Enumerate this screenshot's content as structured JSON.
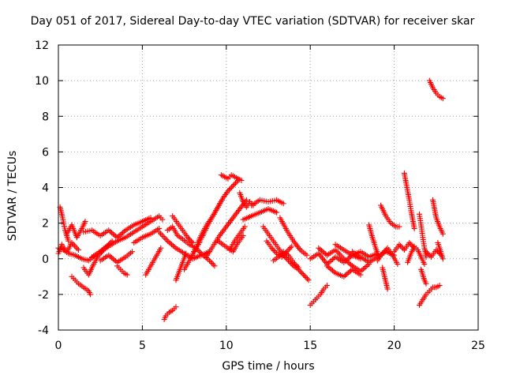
{
  "chart_data": {
    "type": "scatter",
    "title": "Day 051 of 2017, Sidereal Day-to-day VTEC variation (SDTVAR) for receiver skar",
    "xlabel": "GPS time / hours",
    "ylabel": "SDTVAR / TECUs",
    "xlim": [
      0,
      25
    ],
    "ylim": [
      -4,
      12
    ],
    "xticks": [
      "0",
      "5",
      "10",
      "15",
      "20",
      "25"
    ],
    "yticks": [
      "-4",
      "-2",
      "0",
      "2",
      "4",
      "6",
      "8",
      "10",
      "12"
    ],
    "grid": true,
    "marker": "plus",
    "color": "#ff0000",
    "tracks": [
      {
        "x": [
          0.0,
          0.3,
          0.6,
          1.0,
          1.4,
          1.8,
          2.2,
          2.6,
          3.0
        ],
        "y": [
          0.6,
          0.5,
          0.3,
          0.2,
          0.0,
          -0.1,
          0.2,
          0.5,
          0.8
        ]
      },
      {
        "x": [
          0.0,
          0.2,
          0.5,
          0.8,
          1.2
        ],
        "y": [
          0.3,
          0.8,
          0.4,
          0.9,
          0.5
        ]
      },
      {
        "x": [
          0.1,
          0.25,
          0.4,
          0.6
        ],
        "y": [
          2.9,
          2.3,
          1.6,
          1.0
        ]
      },
      {
        "x": [
          0.5,
          0.8,
          1.1,
          1.4,
          1.6
        ],
        "y": [
          1.4,
          1.9,
          1.2,
          1.7,
          2.1
        ]
      },
      {
        "x": [
          0.8,
          1.0,
          1.2,
          1.5,
          1.8,
          1.9
        ],
        "y": [
          -1.0,
          -1.2,
          -1.4,
          -1.6,
          -1.8,
          -2.0
        ]
      },
      {
        "x": [
          1.5,
          1.8,
          2.1,
          2.4,
          2.8,
          3.2
        ],
        "y": [
          -0.5,
          -0.9,
          -0.3,
          0.2,
          0.6,
          1.0
        ]
      },
      {
        "x": [
          1.5,
          2.0,
          2.5,
          3.0,
          3.5,
          4.0,
          4.5,
          5.0,
          5.5
        ],
        "y": [
          1.5,
          1.6,
          1.3,
          1.6,
          1.2,
          1.6,
          1.9,
          2.1,
          2.3
        ]
      },
      {
        "x": [
          2.0,
          2.5,
          3.0,
          3.5,
          4.0,
          4.5,
          5.0,
          5.5,
          6.0,
          6.2
        ],
        "y": [
          0.1,
          0.4,
          0.7,
          1.0,
          1.2,
          1.5,
          1.8,
          2.1,
          2.4,
          2.2
        ]
      },
      {
        "x": [
          2.5,
          3.0,
          3.5,
          4.0,
          4.4
        ],
        "y": [
          -0.1,
          0.2,
          -0.2,
          0.1,
          0.4
        ]
      },
      {
        "x": [
          3.5,
          3.7,
          3.9,
          4.1
        ],
        "y": [
          -0.4,
          -0.6,
          -0.8,
          -0.9
        ]
      },
      {
        "x": [
          4.5,
          5.0,
          5.5,
          6.0
        ],
        "y": [
          0.9,
          1.2,
          1.4,
          1.7
        ]
      },
      {
        "x": [
          5.2,
          5.5,
          5.8,
          6.1
        ],
        "y": [
          -0.9,
          -0.4,
          0.1,
          0.6
        ]
      },
      {
        "x": [
          6.0,
          6.5,
          7.0,
          7.5,
          8.0,
          8.5,
          9.0
        ],
        "y": [
          1.5,
          1.0,
          0.6,
          0.3,
          0.0,
          0.2,
          0.4
        ]
      },
      {
        "x": [
          6.3,
          6.4,
          6.6,
          6.8,
          7.0
        ],
        "y": [
          -3.4,
          -3.2,
          -3.0,
          -2.9,
          -2.7
        ]
      },
      {
        "x": [
          6.5,
          6.8,
          7.1,
          7.4,
          7.8,
          8.2,
          8.6,
          9.0,
          9.3
        ],
        "y": [
          1.6,
          1.8,
          1.3,
          1.1,
          0.8,
          0.6,
          0.2,
          -0.1,
          -0.4
        ]
      },
      {
        "x": [
          6.8,
          7.1,
          7.4,
          7.7,
          8.0
        ],
        "y": [
          2.4,
          2.0,
          1.6,
          1.2,
          0.9
        ]
      },
      {
        "x": [
          7.0,
          7.2,
          7.4,
          7.6
        ],
        "y": [
          -1.2,
          -0.7,
          -0.2,
          0.3
        ]
      },
      {
        "x": [
          7.5,
          7.8,
          8.1,
          8.4
        ],
        "y": [
          -0.6,
          -0.1,
          0.4,
          0.9
        ]
      },
      {
        "x": [
          8.0,
          8.3,
          8.6,
          8.9,
          9.2,
          9.5,
          9.8,
          10.1
        ],
        "y": [
          0.3,
          0.8,
          1.3,
          1.9,
          2.4,
          2.9,
          3.4,
          3.8
        ]
      },
      {
        "x": [
          8.3,
          8.6,
          8.9,
          9.2,
          9.5,
          9.8,
          10.1,
          10.4,
          10.7
        ],
        "y": [
          0.9,
          1.5,
          2.0,
          2.4,
          2.9,
          3.4,
          3.8,
          4.1,
          4.4
        ]
      },
      {
        "x": [
          8.8,
          9.2,
          9.6,
          10.0,
          10.4,
          10.8,
          11.2
        ],
        "y": [
          0.1,
          0.7,
          1.3,
          1.8,
          2.3,
          2.8,
          3.3
        ]
      },
      {
        "x": [
          9.7,
          9.9,
          10.1,
          10.3,
          10.5,
          10.7,
          10.9
        ],
        "y": [
          4.7,
          4.6,
          4.5,
          4.7,
          4.6,
          4.5,
          4.4
        ]
      },
      {
        "x": [
          9.5,
          9.8,
          10.1,
          10.4,
          10.7,
          11.0
        ],
        "y": [
          1.0,
          0.8,
          0.6,
          0.4,
          0.9,
          1.3
        ]
      },
      {
        "x": [
          10.2,
          10.5,
          10.8,
          11.1
        ],
        "y": [
          0.5,
          1.0,
          1.4,
          1.8
        ]
      },
      {
        "x": [
          10.8,
          11.0,
          11.2,
          11.4,
          11.6
        ],
        "y": [
          3.7,
          3.2,
          2.9,
          3.2,
          3.0
        ]
      },
      {
        "x": [
          11.0,
          11.5,
          12.0,
          12.5,
          13.0
        ],
        "y": [
          2.2,
          2.4,
          2.6,
          2.8,
          2.6
        ]
      },
      {
        "x": [
          11.5,
          12.0,
          12.5,
          13.0,
          13.4
        ],
        "y": [
          3.0,
          3.3,
          3.2,
          3.3,
          3.1
        ]
      },
      {
        "x": [
          12.2,
          12.5,
          12.8,
          13.1,
          13.4,
          13.7,
          14.0,
          14.3,
          14.6,
          14.9
        ],
        "y": [
          1.8,
          1.4,
          1.0,
          0.6,
          0.2,
          -0.1,
          -0.4,
          -0.6,
          -0.9,
          -1.2
        ]
      },
      {
        "x": [
          12.4,
          12.7,
          13.0,
          13.3,
          13.6,
          13.9
        ],
        "y": [
          1.0,
          0.6,
          0.3,
          0.1,
          0.4,
          0.7
        ]
      },
      {
        "x": [
          12.8,
          13.1,
          13.4,
          13.7,
          14.0,
          14.3
        ],
        "y": [
          -0.1,
          0.1,
          0.4,
          0.2,
          -0.2,
          -0.5
        ]
      },
      {
        "x": [
          13.2,
          13.6,
          14.0,
          14.4,
          14.8
        ],
        "y": [
          2.3,
          1.6,
          1.0,
          0.5,
          0.2
        ]
      },
      {
        "x": [
          15.0,
          15.2,
          15.4,
          15.6,
          15.8,
          16.0
        ],
        "y": [
          -2.6,
          -2.4,
          -2.2,
          -2.0,
          -1.7,
          -1.5
        ]
      },
      {
        "x": [
          15.0,
          15.5,
          16.0,
          16.5,
          17.0,
          17.5,
          18.0
        ],
        "y": [
          0.0,
          0.3,
          -0.3,
          0.1,
          -0.2,
          0.2,
          0.0
        ]
      },
      {
        "x": [
          15.5,
          16.0,
          16.5,
          17.0,
          17.5,
          18.0,
          18.5
        ],
        "y": [
          0.6,
          0.2,
          0.5,
          0.0,
          -0.4,
          -0.7,
          -0.3
        ]
      },
      {
        "x": [
          16.0,
          16.5,
          17.0,
          17.5,
          18.0
        ],
        "y": [
          -0.4,
          -0.8,
          -1.0,
          -0.6,
          -0.9
        ]
      },
      {
        "x": [
          16.5,
          17.0,
          17.5,
          18.0,
          18.5,
          19.0
        ],
        "y": [
          0.8,
          0.5,
          0.2,
          0.4,
          0.1,
          0.3
        ]
      },
      {
        "x": [
          17.5,
          18.0,
          18.5,
          19.0,
          19.5,
          20.0
        ],
        "y": [
          0.4,
          0.1,
          -0.2,
          0.1,
          0.4,
          0.2
        ]
      },
      {
        "x": [
          18.5,
          18.7,
          18.9,
          19.1
        ],
        "y": [
          1.9,
          1.2,
          0.6,
          0.1
        ]
      },
      {
        "x": [
          19.0,
          19.3,
          19.6,
          19.9,
          20.2
        ],
        "y": [
          -0.1,
          0.3,
          0.6,
          0.2,
          -0.3
        ]
      },
      {
        "x": [
          19.3,
          19.4,
          19.5,
          19.6
        ],
        "y": [
          -0.5,
          -0.9,
          -1.3,
          -1.7
        ]
      },
      {
        "x": [
          19.2,
          19.5,
          19.8,
          20.1,
          20.3
        ],
        "y": [
          3.0,
          2.4,
          2.0,
          1.8,
          1.8
        ]
      },
      {
        "x": [
          20.0,
          20.3,
          20.6,
          20.9,
          21.2
        ],
        "y": [
          0.4,
          0.8,
          0.5,
          0.9,
          0.6
        ]
      },
      {
        "x": [
          20.6,
          20.7,
          20.8,
          20.9,
          21.0,
          21.1,
          21.2
        ],
        "y": [
          4.8,
          4.3,
          3.8,
          3.3,
          2.7,
          2.2,
          1.7
        ]
      },
      {
        "x": [
          20.8,
          21.0,
          21.2,
          21.4,
          21.6,
          21.8
        ],
        "y": [
          -0.2,
          0.3,
          0.7,
          0.5,
          0.1,
          -0.3
        ]
      },
      {
        "x": [
          21.5,
          21.6,
          21.7,
          21.8,
          21.9
        ],
        "y": [
          2.5,
          1.9,
          1.2,
          0.6,
          0.1
        ]
      },
      {
        "x": [
          21.5,
          21.7,
          21.9,
          22.1,
          22.3,
          22.5,
          22.7
        ],
        "y": [
          -2.6,
          -2.3,
          -2.0,
          -1.8,
          -1.6,
          -1.6,
          -1.5
        ]
      },
      {
        "x": [
          21.6,
          21.7,
          21.8,
          21.9
        ],
        "y": [
          -0.6,
          -0.9,
          -1.2,
          -1.4
        ]
      },
      {
        "x": [
          21.9,
          22.2,
          22.5,
          22.8
        ],
        "y": [
          0.4,
          0.1,
          0.5,
          0.2
        ]
      },
      {
        "x": [
          22.1,
          22.3,
          22.5,
          22.7,
          22.9
        ],
        "y": [
          10.0,
          9.6,
          9.3,
          9.1,
          9.0
        ]
      },
      {
        "x": [
          22.3,
          22.4,
          22.5,
          22.7,
          22.9
        ],
        "y": [
          3.3,
          2.8,
          2.3,
          1.8,
          1.4
        ]
      },
      {
        "x": [
          22.6,
          22.7,
          22.8,
          22.9
        ],
        "y": [
          0.9,
          0.6,
          0.3,
          0.0
        ]
      }
    ]
  }
}
